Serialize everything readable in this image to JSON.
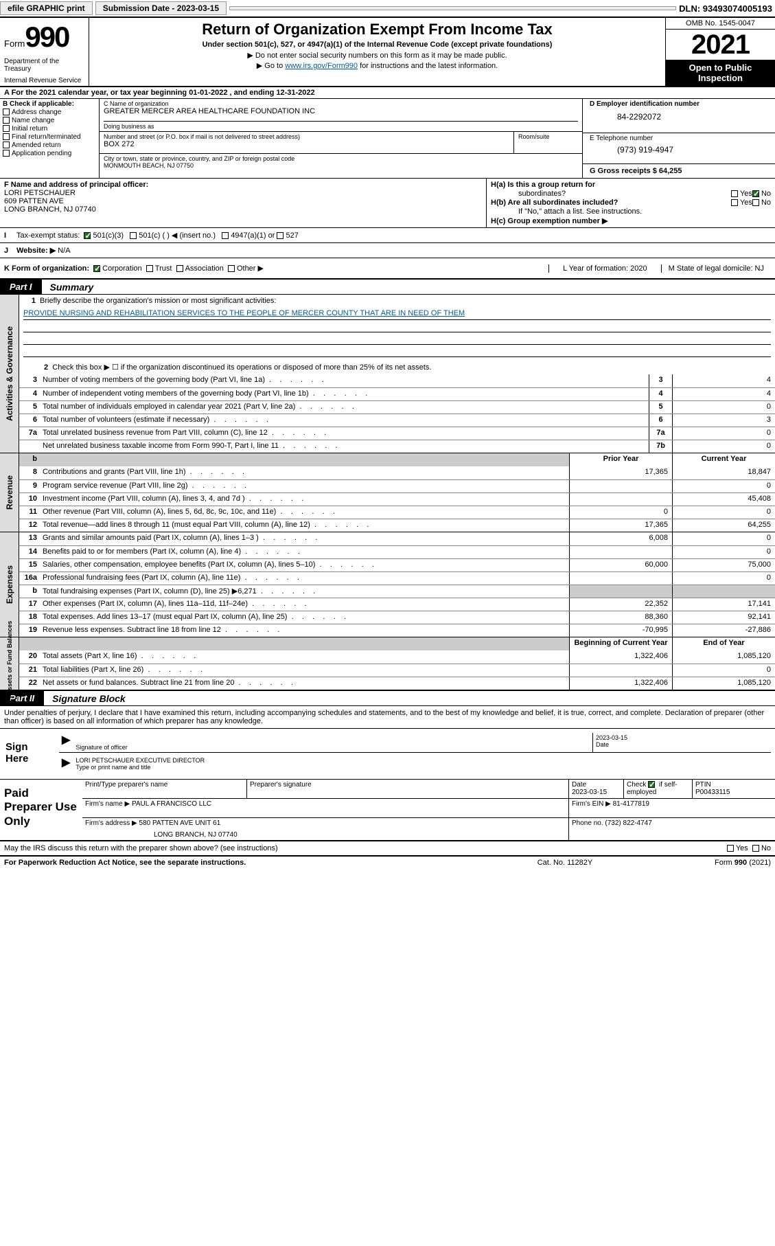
{
  "topbar": {
    "efile": "efile GRAPHIC print",
    "submission_label": "Submission Date - 2023-03-15",
    "dln": "DLN: 93493074005193"
  },
  "header": {
    "form_label": "Form",
    "form_num": "990",
    "dept": "Department of the Treasury",
    "irs": "Internal Revenue Service",
    "title": "Return of Organization Exempt From Income Tax",
    "subtitle": "Under section 501(c), 527, or 4947(a)(1) of the Internal Revenue Code (except private foundations)",
    "note1": "▶ Do not enter social security numbers on this form as it may be made public.",
    "note2_pre": "▶ Go to ",
    "note2_link": "www.irs.gov/Form990",
    "note2_post": " for instructions and the latest information.",
    "omb": "OMB No. 1545-0047",
    "year": "2021",
    "inspect1": "Open to Public",
    "inspect2": "Inspection"
  },
  "row_a": "A For the 2021 calendar year, or tax year beginning 01-01-2022   , and ending 12-31-2022",
  "col_b": {
    "hdr": "B Check if applicable:",
    "opts": [
      "Address change",
      "Name change",
      "Initial return",
      "Final return/terminated",
      "Amended return",
      "Application pending"
    ]
  },
  "col_c": {
    "name_lbl": "C Name of organization",
    "name": "GREATER MERCER AREA HEALTHCARE FOUNDATION INC",
    "dba_lbl": "Doing business as",
    "addr_lbl": "Number and street (or P.O. box if mail is not delivered to street address)",
    "addr": "BOX 272",
    "suite_lbl": "Room/suite",
    "city_lbl": "City or town, state or province, country, and ZIP or foreign postal code",
    "city": "MONMOUTH BEACH, NJ  07750"
  },
  "col_d": {
    "lbl": "D Employer identification number",
    "val": "84-2292072"
  },
  "col_e": {
    "lbl": "E Telephone number",
    "val": "(973) 919-4947"
  },
  "col_g": {
    "txt": "G Gross receipts $ 64,255"
  },
  "col_f": {
    "lbl": "F Name and address of principal officer:",
    "name": "LORI PETSCHAUER",
    "addr1": "609 PATTEN AVE",
    "addr2": "LONG BRANCH, NJ  07740"
  },
  "col_h": {
    "ha": "H(a)  Is this a group return for",
    "ha2": "subordinates?",
    "hb": "H(b)  Are all subordinates included?",
    "hb_note": "If \"No,\" attach a list. See instructions.",
    "hc": "H(c)  Group exemption number ▶",
    "yes": "Yes",
    "no": "No"
  },
  "row_i": {
    "lbl": "Tax-exempt status:",
    "o1": "501(c)(3)",
    "o2": "501(c) (  ) ◀ (insert no.)",
    "o3": "4947(a)(1) or",
    "o4": "527"
  },
  "row_j": {
    "lbl": "Website: ▶",
    "val": "N/A"
  },
  "row_k": {
    "lbl": "K Form of organization:",
    "o1": "Corporation",
    "o2": "Trust",
    "o3": "Association",
    "o4": "Other ▶",
    "l": "L Year of formation: 2020",
    "m": "M State of legal domicile: NJ"
  },
  "part1": {
    "tab": "Part I",
    "title": "Summary"
  },
  "mission": {
    "lbl": "Briefly describe the organization's mission or most significant activities:",
    "txt": "PROVIDE NURSING AND REHABILITATION SERVICES TO THE PEOPLE OF MERCER COUNTY THAT ARE IN NEED OF THEM"
  },
  "line2": "Check this box ▶ ☐  if the organization discontinued its operations or disposed of more than 25% of its net assets.",
  "gov_lines": [
    {
      "n": "3",
      "t": "Number of voting members of the governing body (Part VI, line 1a)",
      "box": "3",
      "v": "4"
    },
    {
      "n": "4",
      "t": "Number of independent voting members of the governing body (Part VI, line 1b)",
      "box": "4",
      "v": "4"
    },
    {
      "n": "5",
      "t": "Total number of individuals employed in calendar year 2021 (Part V, line 2a)",
      "box": "5",
      "v": "0"
    },
    {
      "n": "6",
      "t": "Total number of volunteers (estimate if necessary)",
      "box": "6",
      "v": "3"
    },
    {
      "n": "7a",
      "t": "Total unrelated business revenue from Part VIII, column (C), line 12",
      "box": "7a",
      "v": "0"
    },
    {
      "n": "",
      "t": "Net unrelated business taxable income from Form 990-T, Part I, line 11",
      "box": "7b",
      "v": "0"
    }
  ],
  "col_hdr": {
    "prior": "Prior Year",
    "current": "Current Year"
  },
  "rev_lines": [
    {
      "n": "8",
      "t": "Contributions and grants (Part VIII, line 1h)",
      "p": "17,365",
      "c": "18,847"
    },
    {
      "n": "9",
      "t": "Program service revenue (Part VIII, line 2g)",
      "p": "",
      "c": "0"
    },
    {
      "n": "10",
      "t": "Investment income (Part VIII, column (A), lines 3, 4, and 7d )",
      "p": "",
      "c": "45,408"
    },
    {
      "n": "11",
      "t": "Other revenue (Part VIII, column (A), lines 5, 6d, 8c, 9c, 10c, and 11e)",
      "p": "0",
      "c": "0"
    },
    {
      "n": "12",
      "t": "Total revenue—add lines 8 through 11 (must equal Part VIII, column (A), line 12)",
      "p": "17,365",
      "c": "64,255"
    }
  ],
  "exp_lines": [
    {
      "n": "13",
      "t": "Grants and similar amounts paid (Part IX, column (A), lines 1–3 )",
      "p": "6,008",
      "c": "0"
    },
    {
      "n": "14",
      "t": "Benefits paid to or for members (Part IX, column (A), line 4)",
      "p": "",
      "c": "0"
    },
    {
      "n": "15",
      "t": "Salaries, other compensation, employee benefits (Part IX, column (A), lines 5–10)",
      "p": "60,000",
      "c": "75,000"
    },
    {
      "n": "16a",
      "t": "Professional fundraising fees (Part IX, column (A), line 11e)",
      "p": "",
      "c": "0"
    },
    {
      "n": "b",
      "t": "Total fundraising expenses (Part IX, column (D), line 25) ▶6,271",
      "p": "grey",
      "c": "grey"
    },
    {
      "n": "17",
      "t": "Other expenses (Part IX, column (A), lines 11a–11d, 11f–24e)",
      "p": "22,352",
      "c": "17,141"
    },
    {
      "n": "18",
      "t": "Total expenses. Add lines 13–17 (must equal Part IX, column (A), line 25)",
      "p": "88,360",
      "c": "92,141"
    },
    {
      "n": "19",
      "t": "Revenue less expenses. Subtract line 18 from line 12",
      "p": "-70,995",
      "c": "-27,886"
    }
  ],
  "na_hdr": {
    "beg": "Beginning of Current Year",
    "end": "End of Year"
  },
  "na_lines": [
    {
      "n": "20",
      "t": "Total assets (Part X, line 16)",
      "p": "1,322,406",
      "c": "1,085,120"
    },
    {
      "n": "21",
      "t": "Total liabilities (Part X, line 26)",
      "p": "",
      "c": "0"
    },
    {
      "n": "22",
      "t": "Net assets or fund balances. Subtract line 21 from line 20",
      "p": "1,322,406",
      "c": "1,085,120"
    }
  ],
  "vtabs": {
    "gov": "Activities & Governance",
    "rev": "Revenue",
    "exp": "Expenses",
    "na": "Net Assets or\nFund Balances"
  },
  "part2": {
    "tab": "Part II",
    "title": "Signature Block"
  },
  "sig_intro": "Under penalties of perjury, I declare that I have examined this return, including accompanying schedules and statements, and to the best of my knowledge and belief, it is true, correct, and complete. Declaration of preparer (other than officer) is based on all information of which preparer has any knowledge.",
  "sign": {
    "here": "Sign Here",
    "sig_lbl": "Signature of officer",
    "date_lbl": "Date",
    "date": "2023-03-15",
    "name": "LORI PETSCHAUER  EXECUTIVE DIRECTOR",
    "name_lbl": "Type or print name and title"
  },
  "prep": {
    "title": "Paid Preparer Use Only",
    "h1": "Print/Type preparer's name",
    "h2": "Preparer's signature",
    "h3": "Date",
    "h3v": "2023-03-15",
    "h4": "Check",
    "h4b": "if self-employed",
    "h5": "PTIN",
    "h5v": "P00433115",
    "firm_lbl": "Firm's name    ▶",
    "firm": "PAUL A FRANCISCO LLC",
    "ein_lbl": "Firm's EIN ▶",
    "ein": "81-4177819",
    "addr_lbl": "Firm's address ▶",
    "addr1": "580 PATTEN AVE UNIT 61",
    "addr2": "LONG BRANCH, NJ  07740",
    "phone_lbl": "Phone no.",
    "phone": "(732) 822-4747"
  },
  "discuss": "May the IRS discuss this return with the preparer shown above? (see instructions)",
  "footer": {
    "l": "For Paperwork Reduction Act Notice, see the separate instructions.",
    "c": "Cat. No. 11282Y",
    "r": "Form 990 (2021)"
  }
}
